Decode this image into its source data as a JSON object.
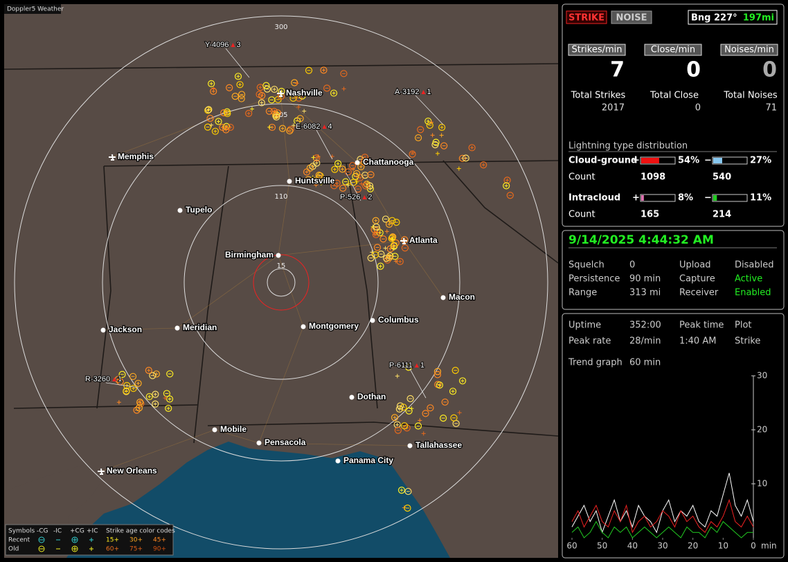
{
  "app_title": "Doppler5 Weather",
  "map": {
    "ring_labels": [
      "300",
      "205",
      "110",
      "15"
    ],
    "cities": [
      "Nashville",
      "Memphis",
      "Chattanooga",
      "Huntsville",
      "Tupelo",
      "Atlanta",
      "Birmingham",
      "Macon",
      "Jackson",
      "Meridian",
      "Montgomery",
      "Columbus",
      "Dothan",
      "Mobile",
      "Pensacola",
      "Tallahassee",
      "Panama City",
      "New Orleans"
    ],
    "cells": [
      {
        "id": "Y-4096",
        "count": 3
      },
      {
        "id": "A-3192",
        "count": 1
      },
      {
        "id": "E-6082",
        "count": 4
      },
      {
        "id": "P-526",
        "count": 2
      },
      {
        "id": "R-3260",
        "count": 1
      },
      {
        "id": "P-6111",
        "count": 1
      }
    ]
  },
  "legend": {
    "title": "Symbols",
    "symbols": [
      "-CG",
      "-IC",
      "+CG",
      "+IC"
    ],
    "age_title": "Strike age color codes",
    "rows": [
      "Recent",
      "Old"
    ],
    "ages": [
      [
        "15+",
        "30+",
        "45+"
      ],
      [
        "60+",
        "75+",
        "90+"
      ]
    ]
  },
  "panel": {
    "strike_button": "STRIKE",
    "noise_button": "NOISE",
    "bearing": "Bng 227°",
    "distance": "197mi",
    "rates": [
      {
        "label": "Strikes/min",
        "value": 7
      },
      {
        "label": "Close/min",
        "value": 0
      },
      {
        "label": "Noises/min",
        "value": 0
      }
    ],
    "totals": [
      {
        "label": "Total Strikes",
        "value": 2017
      },
      {
        "label": "Total Close",
        "value": 0
      },
      {
        "label": "Total Noises",
        "value": 71
      }
    ],
    "distribution": {
      "title": "Lightning type distribution",
      "count_label": "Count",
      "rows": [
        {
          "name": "Cloud-ground",
          "pos": {
            "sign": "+",
            "value": 54,
            "value_label": "54%",
            "count": 1098,
            "color": "#ee1111"
          },
          "neg": {
            "sign": "−",
            "value": 27,
            "value_label": "27%",
            "count": 540,
            "color": "#88c8f0"
          }
        },
        {
          "name": "Intracloud",
          "pos": {
            "sign": "+",
            "value": 8,
            "value_label": "8%",
            "count": 165,
            "color": "#e070b0"
          },
          "neg": {
            "sign": "−",
            "value": 11,
            "value_label": "11%",
            "count": 214,
            "color": "#22cc22"
          }
        }
      ]
    },
    "status": {
      "datetime": "9/14/2025 4:44:32 AM",
      "rows": [
        [
          "Squelch",
          "0",
          "Upload",
          "Disabled"
        ],
        [
          "Persistence",
          "90 min",
          "Capture",
          "Active"
        ],
        [
          "Range",
          "313 mi",
          "Receiver",
          "Enabled"
        ]
      ]
    },
    "stats": {
      "rows": [
        [
          "Uptime",
          "352:00",
          "Peak time",
          "Plot"
        ],
        [
          "Peak rate",
          "28/min",
          "1:40 AM",
          "Strike"
        ]
      ],
      "trend_label": "Trend graph",
      "trend_value": "60 min"
    }
  },
  "chart_data": {
    "type": "line",
    "x": [
      60,
      58,
      56,
      54,
      52,
      50,
      48,
      46,
      44,
      42,
      40,
      38,
      36,
      34,
      32,
      30,
      28,
      26,
      24,
      22,
      20,
      18,
      16,
      14,
      12,
      10,
      8,
      6,
      4,
      2,
      0
    ],
    "xlim": [
      60,
      0
    ],
    "xticks": [
      60,
      50,
      40,
      30,
      20,
      10,
      0
    ],
    "x_unit": "min",
    "ylim": [
      0,
      30
    ],
    "yticks": [
      10,
      20,
      30
    ],
    "series": [
      {
        "color": "#ffffff",
        "values": [
          2,
          4,
          6,
          3,
          5,
          1,
          4,
          7,
          3,
          5,
          2,
          6,
          4,
          3,
          1,
          5,
          7,
          3,
          5,
          4,
          6,
          3,
          2,
          5,
          4,
          8,
          12,
          6,
          4,
          7,
          3
        ]
      },
      {
        "color": "#ee2222",
        "values": [
          3,
          5,
          2,
          4,
          6,
          3,
          2,
          5,
          3,
          6,
          1,
          3,
          4,
          2,
          3,
          5,
          4,
          2,
          5,
          3,
          4,
          2,
          1,
          3,
          2,
          4,
          7,
          3,
          2,
          4,
          2
        ]
      },
      {
        "color": "#22cc22",
        "values": [
          1,
          2,
          0,
          1,
          3,
          1,
          0,
          2,
          1,
          2,
          0,
          1,
          2,
          1,
          0,
          1,
          2,
          1,
          0,
          2,
          1,
          1,
          0,
          2,
          1,
          3,
          2,
          1,
          0,
          1,
          1
        ]
      }
    ]
  }
}
